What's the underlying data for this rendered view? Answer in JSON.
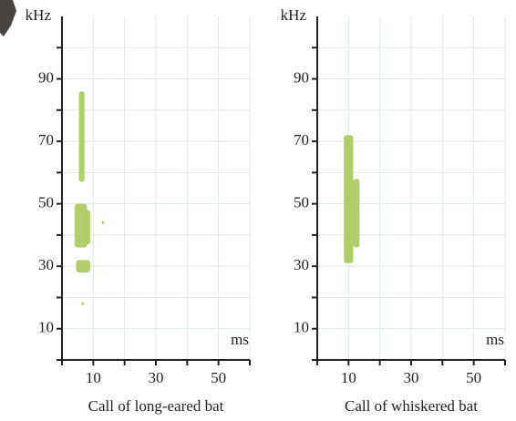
{
  "chart_data": [
    {
      "type": "spectrogram",
      "title": "Call of long-eared bat",
      "ylabel": "kHz",
      "xlabel": "ms",
      "xlim": [
        0,
        60
      ],
      "ylim": [
        0,
        110
      ],
      "xticks": [
        10,
        30,
        50
      ],
      "minor_xticks": [
        0,
        20,
        40,
        60
      ],
      "yticks": [
        10,
        30,
        50,
        70,
        90
      ],
      "minor_yticks": [
        0,
        20,
        40,
        60,
        80,
        100
      ],
      "grid": true,
      "color": "#a9c95c",
      "blobs": [
        {
          "x": [
            5.4,
            7.2
          ],
          "y": [
            57,
            86
          ]
        },
        {
          "x": [
            4,
            8
          ],
          "y": [
            36,
            50
          ]
        },
        {
          "x": [
            7.5,
            9
          ],
          "y": [
            37,
            48
          ]
        },
        {
          "x": [
            4.5,
            9
          ],
          "y": [
            28,
            32
          ]
        },
        {
          "x": [
            12.7,
            13.5
          ],
          "y": [
            43.5,
            44.5
          ]
        },
        {
          "x": [
            6.2,
            7
          ],
          "y": [
            17.5,
            18.5
          ]
        }
      ]
    },
    {
      "type": "spectrogram",
      "title": "Call of whiskered bat",
      "ylabel": "kHz",
      "xlabel": "ms",
      "xlim": [
        0,
        60
      ],
      "ylim": [
        0,
        110
      ],
      "xticks": [
        10,
        30,
        50
      ],
      "minor_xticks": [
        0,
        20,
        40,
        60
      ],
      "yticks": [
        10,
        30,
        50,
        70,
        90
      ],
      "minor_yticks": [
        0,
        20,
        40,
        60,
        80,
        100
      ],
      "grid": true,
      "color": "#a9c95c",
      "blobs": [
        {
          "x": [
            8.5,
            11.5
          ],
          "y": [
            31,
            72
          ]
        },
        {
          "x": [
            11.5,
            13.5
          ],
          "y": [
            36,
            58
          ]
        }
      ]
    }
  ]
}
